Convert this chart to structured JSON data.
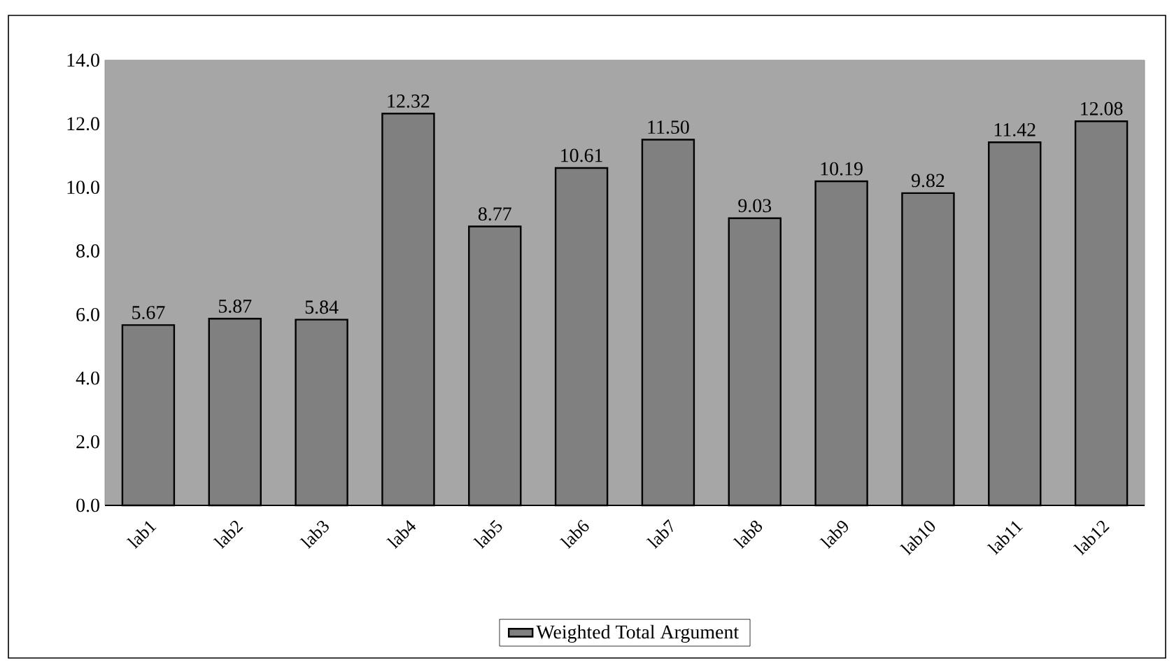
{
  "chart_data": {
    "type": "bar",
    "categories": [
      "lab1",
      "lab2",
      "lab3",
      "lab4",
      "lab5",
      "lab6",
      "lab7",
      "lab8",
      "lab9",
      "lab10",
      "lab11",
      "lab12"
    ],
    "series": [
      {
        "name": "Weighted Total Argument",
        "color": "#808080",
        "values": [
          5.67,
          5.87,
          5.84,
          12.32,
          8.77,
          10.61,
          11.5,
          9.03,
          10.19,
          9.82,
          11.42,
          12.08
        ],
        "value_labels": [
          "5.67",
          "5.87",
          "5.84",
          "12.32",
          "8.77",
          "10.61",
          "11.50",
          "9.03",
          "10.19",
          "9.82",
          "11.42",
          "12.08"
        ]
      }
    ],
    "ylim": [
      0,
      14
    ],
    "yticks": [
      {
        "value": 0,
        "label": "0.0"
      },
      {
        "value": 2,
        "label": "2.0"
      },
      {
        "value": 4,
        "label": "4.0"
      },
      {
        "value": 6,
        "label": "6.0"
      },
      {
        "value": 8,
        "label": "8.0"
      },
      {
        "value": 10,
        "label": "10.0"
      },
      {
        "value": 12,
        "label": "12.0"
      },
      {
        "value": 14,
        "label": "14.0"
      }
    ],
    "grid": false,
    "legend": "bottom"
  }
}
